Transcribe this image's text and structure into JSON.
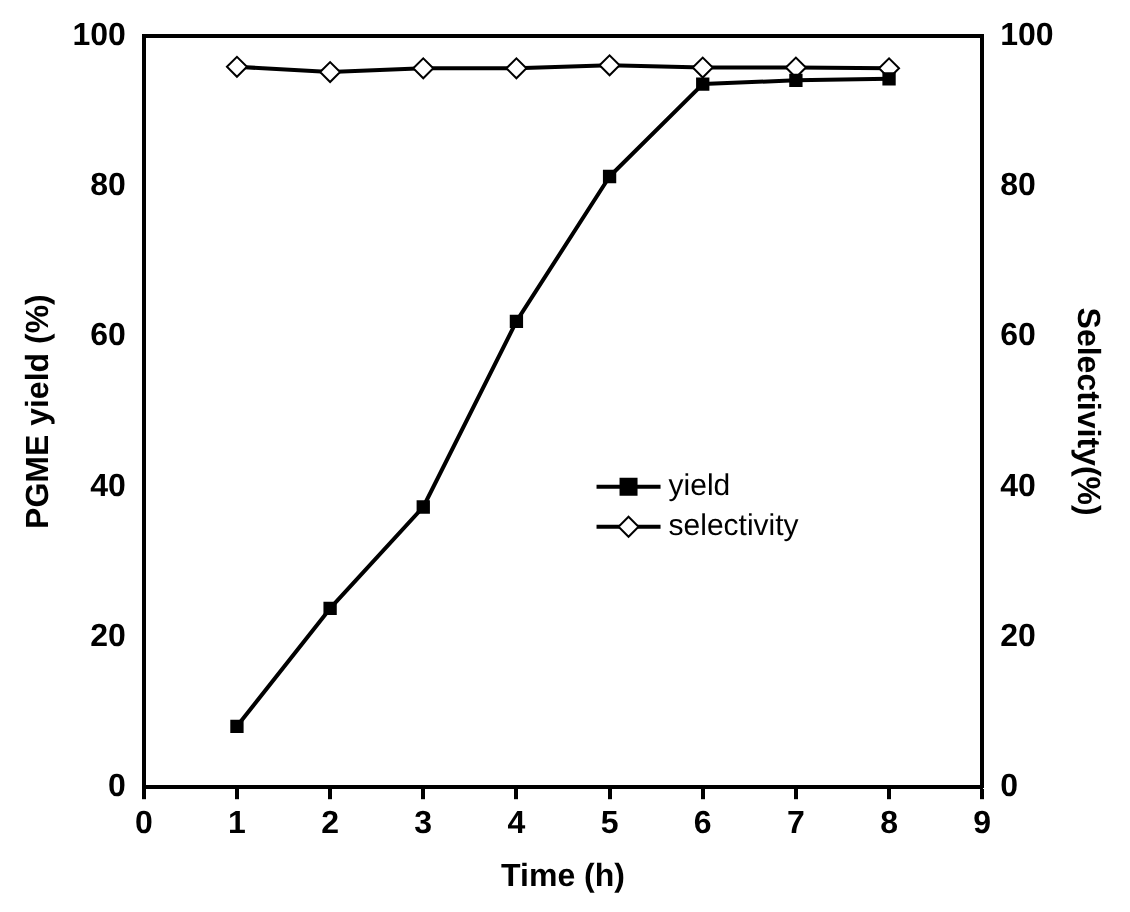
{
  "chart_data": {
    "type": "line",
    "xlabel": "Time (h)",
    "ylabel": "PGME yield (%)",
    "y2label": "Selectivity(%)",
    "x": [
      1,
      2,
      3,
      4,
      5,
      6,
      7,
      8
    ],
    "series": [
      {
        "name": "yield",
        "color": "#000000",
        "marker": "square",
        "values": [
          8.1,
          23.8,
          37.3,
          62,
          81.3,
          93.6,
          94.1,
          94.3
        ]
      },
      {
        "name": "selectivity",
        "color": "#000000",
        "marker": "diamond",
        "axis": "y2",
        "values": [
          95.9,
          95.2,
          95.7,
          95.7,
          96.1,
          95.8,
          95.8,
          95.7
        ]
      }
    ],
    "xlim": [
      0,
      9
    ],
    "xticks": [
      0,
      1,
      2,
      3,
      4,
      5,
      6,
      7,
      8,
      9
    ],
    "ylim": [
      0,
      100
    ],
    "yticks": [
      0,
      20,
      40,
      60,
      80,
      100
    ],
    "y2lim": [
      0,
      100
    ],
    "y2ticks": [
      0,
      20,
      40,
      60,
      80,
      100
    ],
    "legend": "center right",
    "grid": false,
    "line_style": "solid"
  }
}
